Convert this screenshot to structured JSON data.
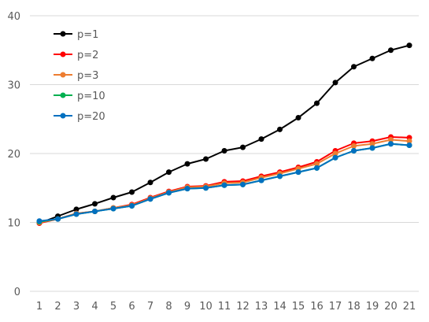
{
  "chart_data": {
    "type": "line",
    "title": "",
    "xlabel": "",
    "ylabel": "",
    "categories": [
      "1",
      "2",
      "3",
      "4",
      "5",
      "6",
      "7",
      "8",
      "9",
      "10",
      "11",
      "12",
      "13",
      "14",
      "15",
      "16",
      "17",
      "18",
      "19",
      "20",
      "21"
    ],
    "ylim": [
      0,
      40
    ],
    "yticks": [
      0,
      10,
      20,
      30,
      40
    ],
    "grid": true,
    "legend_position": "top-left",
    "series": [
      {
        "name": "p=1",
        "color": "#000000",
        "values": [
          9.9,
          10.9,
          11.9,
          12.7,
          13.6,
          14.4,
          15.8,
          17.3,
          18.5,
          19.2,
          20.4,
          20.9,
          22.1,
          23.5,
          25.2,
          27.3,
          30.3,
          32.6,
          33.8,
          35.0,
          35.7
        ]
      },
      {
        "name": "p=2",
        "color": "#ff0000",
        "values": [
          9.9,
          10.5,
          11.3,
          11.6,
          12.1,
          12.6,
          13.6,
          14.5,
          15.2,
          15.3,
          15.9,
          16.0,
          16.7,
          17.3,
          18.0,
          18.8,
          20.4,
          21.5,
          21.8,
          22.4,
          22.3
        ]
      },
      {
        "name": "p=3",
        "color": "#ed7d31",
        "values": [
          10.0,
          10.5,
          11.3,
          11.6,
          12.1,
          12.5,
          13.5,
          14.4,
          15.1,
          15.2,
          15.7,
          15.8,
          16.5,
          17.1,
          17.8,
          18.5,
          20.0,
          21.1,
          21.4,
          22.0,
          21.8
        ]
      },
      {
        "name": "p=10",
        "color": "#00b050",
        "values": [
          10.1,
          10.5,
          11.2,
          11.6,
          12.0,
          12.4,
          13.4,
          14.3,
          14.9,
          15.0,
          15.4,
          15.5,
          16.1,
          16.7,
          17.3,
          17.9,
          19.4,
          20.4,
          20.8,
          21.4,
          21.2
        ]
      },
      {
        "name": "p=20",
        "color": "#0070c0",
        "values": [
          10.2,
          10.5,
          11.2,
          11.6,
          12.0,
          12.4,
          13.4,
          14.3,
          14.9,
          15.0,
          15.4,
          15.5,
          16.1,
          16.7,
          17.3,
          17.9,
          19.4,
          20.4,
          20.8,
          21.4,
          21.2
        ]
      }
    ]
  }
}
